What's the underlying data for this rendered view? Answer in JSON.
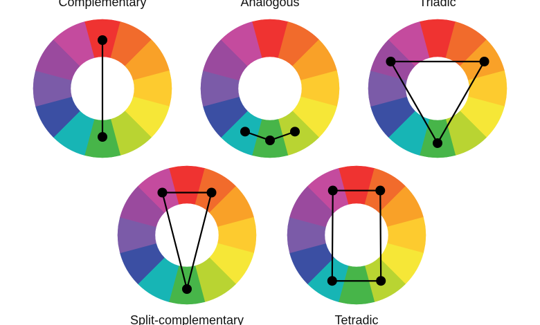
{
  "wheels": [
    {
      "title": "Complementary"
    },
    {
      "title": "Analogous"
    },
    {
      "title": "Triadic"
    },
    {
      "title": "Split-complementary"
    },
    {
      "title": "Tetradic"
    }
  ]
}
